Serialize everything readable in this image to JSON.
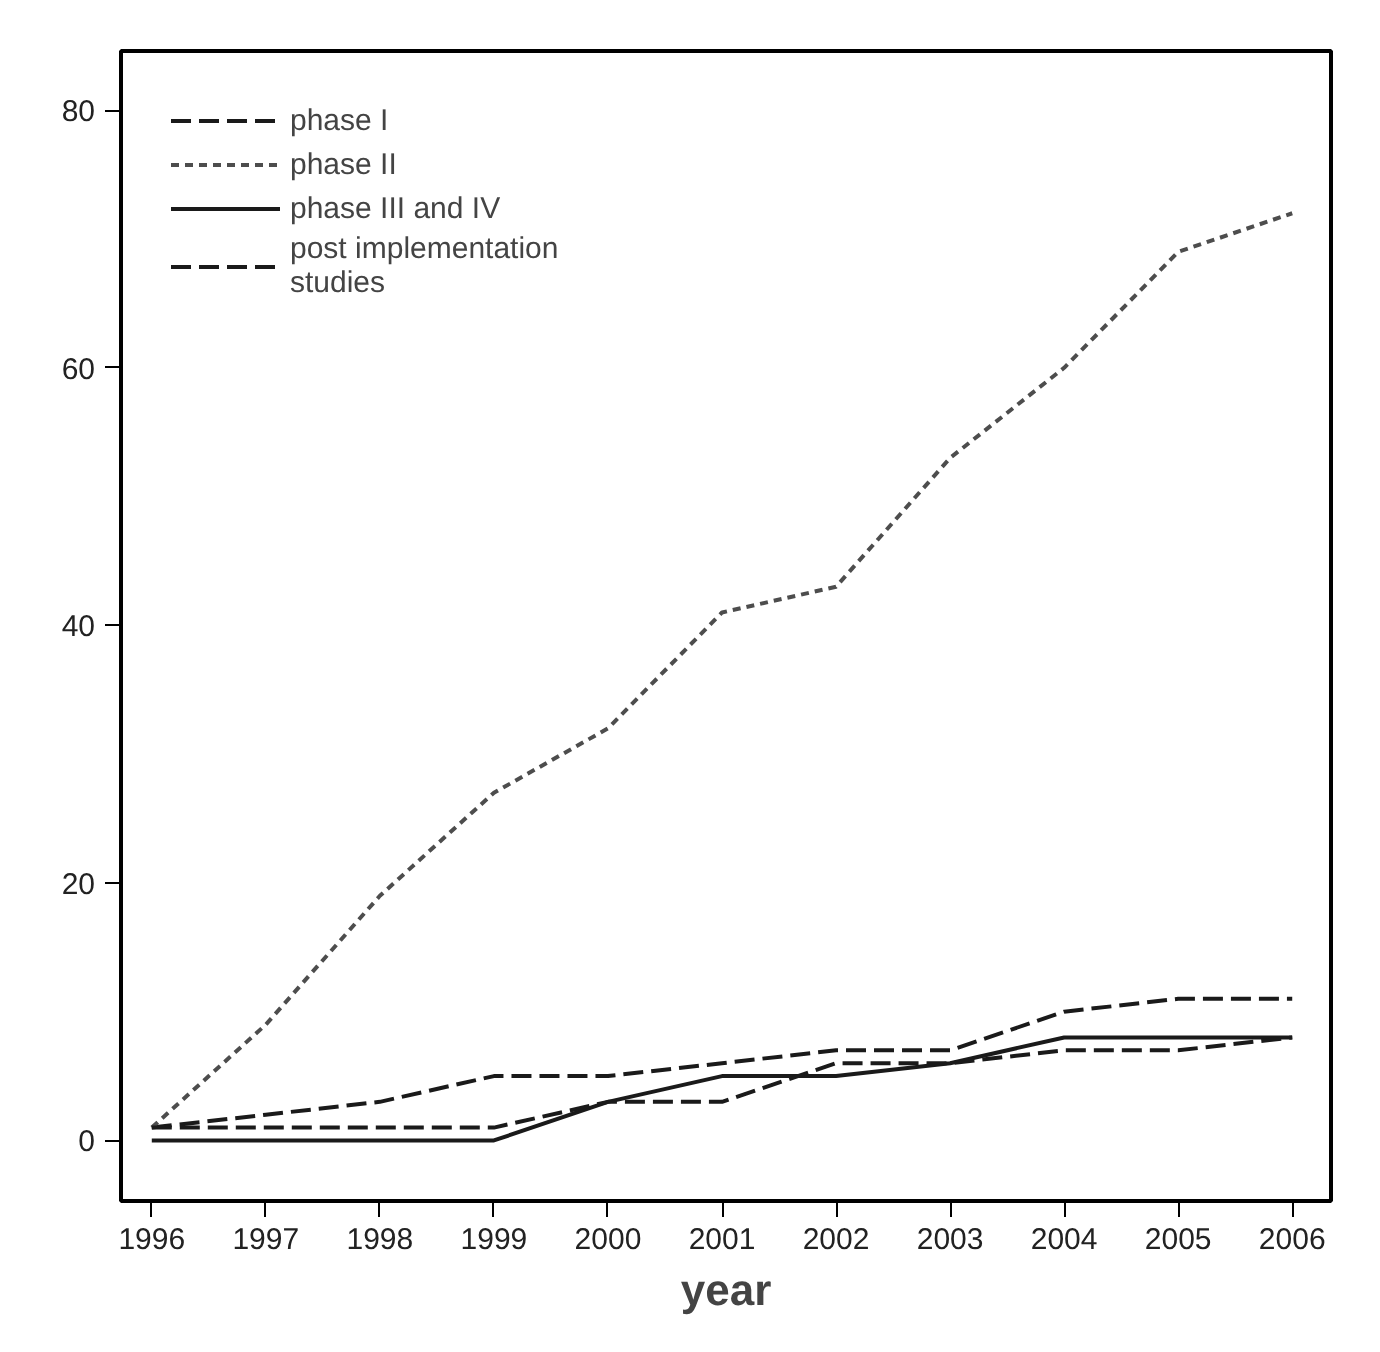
{
  "chart_data": {
    "type": "line",
    "xlabel": "year",
    "x": [
      1996,
      1997,
      1998,
      1999,
      2000,
      2001,
      2002,
      2003,
      2004,
      2005,
      2006
    ],
    "series": [
      {
        "name": "phase I",
        "color": "#1a1a1a",
        "line_style": "dashed",
        "values": [
          1,
          2,
          3,
          5,
          5,
          6,
          7,
          7,
          10,
          11,
          11
        ]
      },
      {
        "name": "phase II",
        "color": "#4d4d4d",
        "line_style": "dotted",
        "values": [
          1,
          9,
          19,
          27,
          32,
          41,
          43,
          53,
          60,
          69,
          72
        ]
      },
      {
        "name": "phase III and IV",
        "color": "#1a1a1a",
        "line_style": "solid",
        "values": [
          0,
          0,
          0,
          0,
          3,
          5,
          5,
          6,
          8,
          8,
          8
        ]
      },
      {
        "name": "post implementation\nstudies",
        "color": "#1a1a1a",
        "line_style": "dashed",
        "values": [
          1,
          1,
          1,
          1,
          3,
          3,
          6,
          6,
          7,
          7,
          8
        ]
      }
    ],
    "xlim": [
      1995.73,
      2006.34
    ],
    "ylim": [
      -4.7,
      84.6
    ],
    "xticks": [
      1996,
      1997,
      1998,
      1999,
      2000,
      2001,
      2002,
      2003,
      2004,
      2005,
      2006
    ],
    "yticks": [
      0,
      20,
      40,
      60,
      80
    ],
    "grid": false,
    "legend": "top left",
    "marker": "none"
  }
}
